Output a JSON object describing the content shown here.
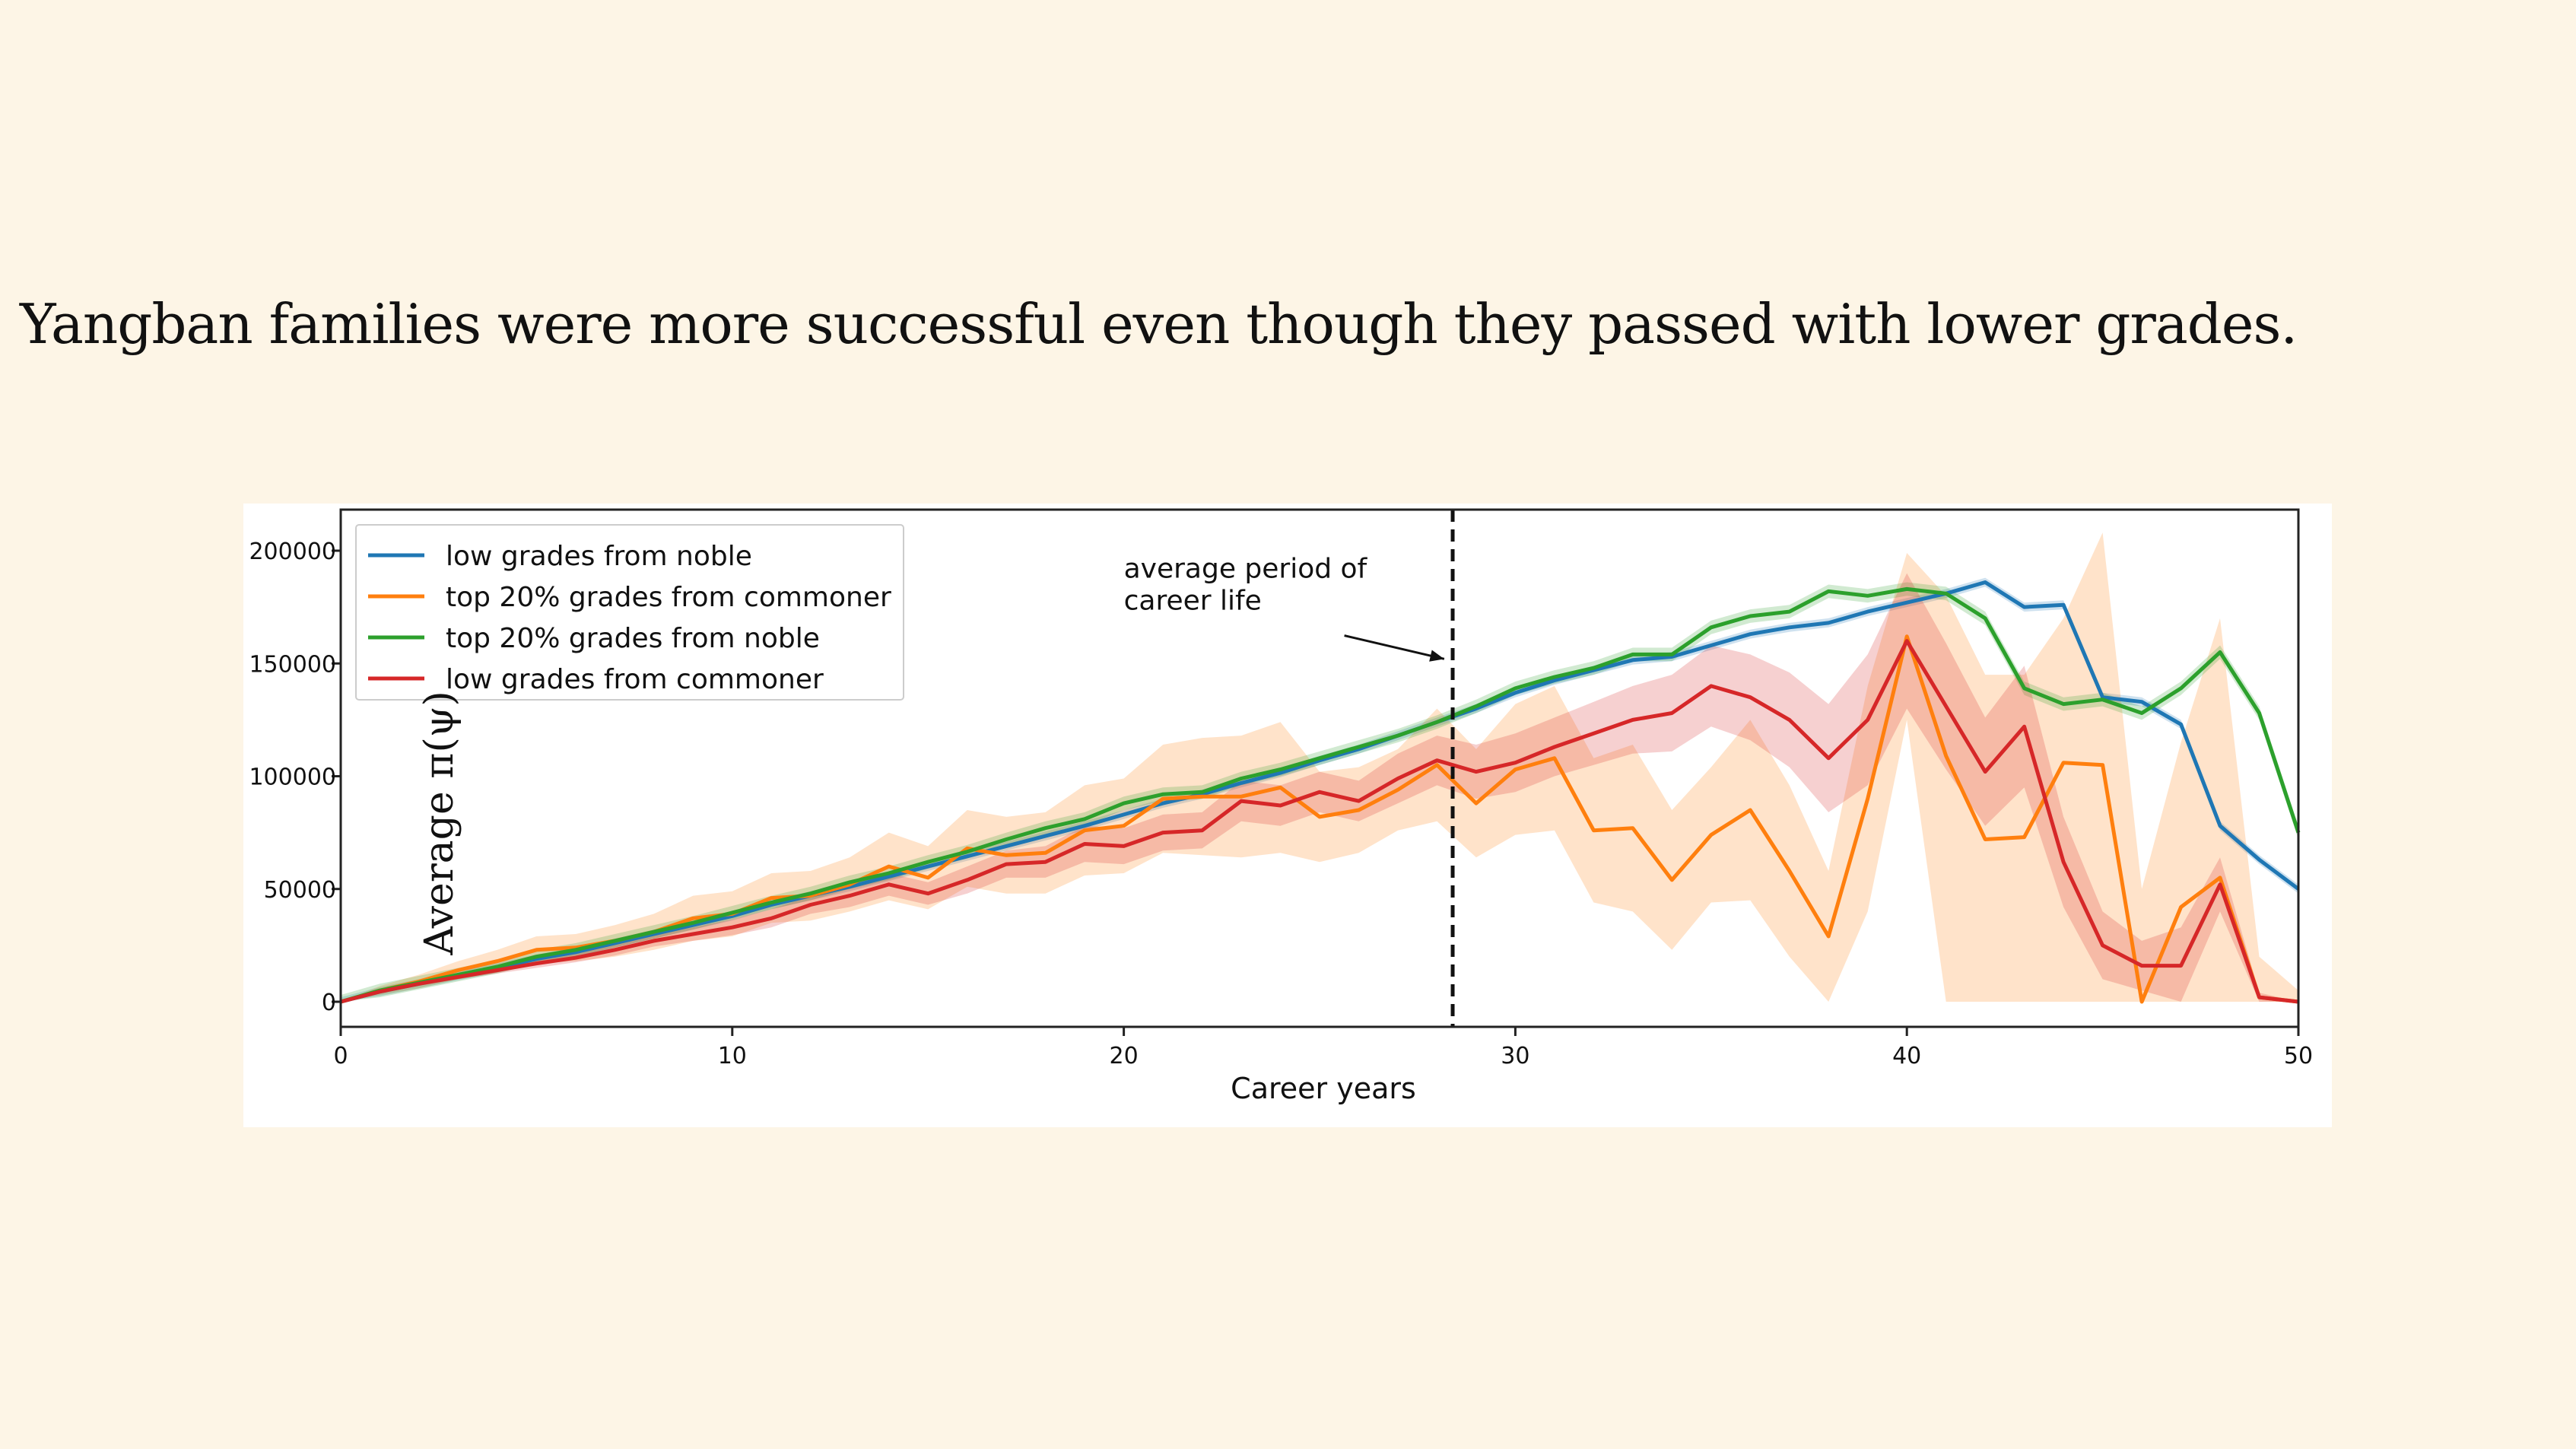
{
  "slide": {
    "title": "Yangban families were more successful even though they passed with lower grades."
  },
  "chart_data": {
    "type": "line",
    "xlabel": "Career years",
    "ylabel": "Average π(ψ)",
    "xlim": [
      0,
      50
    ],
    "ylim": [
      -10000,
      210000
    ],
    "x_ticks": [
      0,
      10,
      20,
      30,
      40,
      50
    ],
    "y_ticks": [
      0,
      50000,
      100000,
      150000,
      200000
    ],
    "y_tick_labels": [
      "0",
      "50000",
      "100000",
      "150000",
      "200000"
    ],
    "grid": false,
    "legend_position": "top-left",
    "annotation": {
      "text_lines": [
        "average period of",
        "career life"
      ],
      "vline_x": 28.4,
      "text_x": 20,
      "text_y": 188000,
      "arrow_to": [
        28.3,
        152000
      ]
    },
    "series": [
      {
        "name": "low grades from noble",
        "color": "#1f77b4",
        "x": [
          0,
          1,
          2,
          3,
          4,
          5,
          6,
          7,
          8,
          9,
          10,
          11,
          12,
          13,
          14,
          15,
          16,
          17,
          18,
          19,
          20,
          21,
          22,
          23,
          24,
          25,
          26,
          27,
          28,
          29,
          30,
          31,
          32,
          33,
          34,
          35,
          36,
          37,
          38,
          39,
          40,
          41,
          42,
          43,
          44,
          45,
          46,
          47,
          48,
          49,
          50
        ],
        "y": [
          0,
          4500,
          8000,
          11500,
          15000,
          19000,
          22000,
          26000,
          30000,
          34000,
          38000,
          43000,
          47000,
          51000,
          55500,
          60000,
          64500,
          69000,
          73500,
          78000,
          83000,
          88000,
          92000,
          97000,
          101500,
          107000,
          112000,
          118000,
          124000,
          130000,
          137000,
          142500,
          147000,
          151500,
          153000,
          158000,
          163000,
          166000,
          168000,
          173000,
          177000,
          181000,
          186000,
          175000,
          176000,
          135000,
          133000,
          123000,
          78000,
          63000,
          50000
        ],
        "band": 2000
      },
      {
        "name": "top 20% grades from commoner",
        "color": "#ff7f0e",
        "x": [
          0,
          1,
          2,
          3,
          4,
          5,
          6,
          7,
          8,
          9,
          10,
          11,
          12,
          13,
          14,
          15,
          16,
          17,
          18,
          19,
          20,
          21,
          22,
          23,
          24,
          25,
          26,
          27,
          28,
          29,
          30,
          31,
          32,
          33,
          34,
          35,
          36,
          37,
          38,
          39,
          40,
          41,
          42,
          43,
          44,
          45,
          46,
          47,
          48,
          49,
          50
        ],
        "y": [
          0,
          5000,
          9000,
          14000,
          18000,
          23000,
          24000,
          27000,
          31000,
          37000,
          39000,
          46000,
          47000,
          52000,
          60000,
          55000,
          68000,
          65000,
          66000,
          76000,
          78000,
          90000,
          91000,
          91000,
          95000,
          82000,
          85000,
          94000,
          105000,
          88000,
          103000,
          108000,
          76000,
          77000,
          54000,
          74000,
          85000,
          58000,
          29000,
          90000,
          162000,
          109000,
          72000,
          73000,
          106000,
          105000,
          0,
          42000,
          55000,
          2000,
          0
        ],
        "band_low": [
          0,
          3000,
          6000,
          10000,
          13000,
          17000,
          18000,
          20000,
          23000,
          27000,
          29000,
          35000,
          36000,
          40000,
          45000,
          41000,
          51000,
          48000,
          48000,
          56000,
          57000,
          66000,
          65000,
          64000,
          66000,
          62000,
          66000,
          76000,
          80000,
          64000,
          74000,
          76000,
          44000,
          40000,
          23000,
          44000,
          45000,
          20000,
          0,
          40000,
          125000,
          0,
          0,
          0,
          0,
          0,
          0,
          0,
          0,
          0,
          0
        ],
        "band_high": [
          0,
          7000,
          12000,
          18000,
          23000,
          29000,
          30000,
          34000,
          39000,
          47000,
          49000,
          57000,
          58000,
          64000,
          75000,
          69000,
          85000,
          82000,
          84000,
          96000,
          99000,
          114000,
          117000,
          118000,
          124000,
          102000,
          104000,
          112000,
          130000,
          112000,
          132000,
          140000,
          108000,
          114000,
          85000,
          104000,
          125000,
          96000,
          58000,
          140000,
          199000,
          180000,
          145000,
          145000,
          170000,
          208000,
          50000,
          115000,
          170000,
          20000,
          5000
        ]
      },
      {
        "name": "top 20% grades from noble",
        "color": "#2ca02c",
        "x": [
          0,
          1,
          2,
          3,
          4,
          5,
          6,
          7,
          8,
          9,
          10,
          11,
          12,
          13,
          14,
          15,
          16,
          17,
          18,
          19,
          20,
          21,
          22,
          23,
          24,
          25,
          26,
          27,
          28,
          29,
          30,
          31,
          32,
          33,
          34,
          35,
          36,
          37,
          38,
          39,
          40,
          41,
          42,
          43,
          44,
          45,
          46,
          47,
          48,
          49,
          50
        ],
        "y": [
          0,
          5000,
          8500,
          12000,
          15500,
          20000,
          23000,
          27000,
          31000,
          35000,
          39500,
          44000,
          48000,
          53000,
          57000,
          62000,
          66500,
          72000,
          77000,
          81000,
          88000,
          92000,
          93000,
          99000,
          103000,
          108000,
          113000,
          118000,
          124000,
          131000,
          139000,
          144000,
          148000,
          154000,
          154000,
          166000,
          171000,
          173000,
          182000,
          180000,
          183000,
          181000,
          170000,
          139000,
          132000,
          134000,
          128000,
          139000,
          155000,
          128000,
          75000
        ],
        "band": 3000
      },
      {
        "name": "low grades from commoner",
        "color": "#d62728",
        "x": [
          0,
          1,
          2,
          3,
          4,
          5,
          6,
          7,
          8,
          9,
          10,
          11,
          12,
          13,
          14,
          15,
          16,
          17,
          18,
          19,
          20,
          21,
          22,
          23,
          24,
          25,
          26,
          27,
          28,
          29,
          30,
          31,
          32,
          33,
          34,
          35,
          36,
          37,
          38,
          39,
          40,
          41,
          42,
          43,
          44,
          45,
          46,
          47,
          48,
          49,
          50
        ],
        "y": [
          0,
          4500,
          8000,
          11000,
          14000,
          17000,
          19500,
          23000,
          27000,
          30000,
          33000,
          37000,
          43000,
          47000,
          52000,
          48000,
          54000,
          61000,
          62000,
          70000,
          69000,
          75000,
          76000,
          89000,
          87000,
          93000,
          89000,
          99000,
          107000,
          102000,
          106000,
          113000,
          119000,
          125000,
          128000,
          140000,
          135000,
          125000,
          108000,
          125000,
          160000,
          131000,
          102000,
          122000,
          62000,
          25000,
          16000,
          16000,
          52000,
          2000,
          0
        ],
        "band_low": [
          0,
          4000,
          7000,
          10000,
          12500,
          15000,
          17500,
          20500,
          24500,
          27000,
          29500,
          33000,
          39000,
          42000,
          47000,
          43000,
          48000,
          55000,
          55000,
          62000,
          61000,
          67000,
          68000,
          80000,
          78000,
          84000,
          80000,
          88000,
          96000,
          90000,
          93000,
          100000,
          105000,
          110000,
          111000,
          122000,
          116000,
          104000,
          84000,
          96000,
          130000,
          103000,
          78000,
          95000,
          42000,
          10000,
          5000,
          0,
          40000,
          0,
          0
        ],
        "band_high": [
          0,
          5000,
          9000,
          12000,
          15500,
          19000,
          21500,
          25500,
          29500,
          33000,
          36500,
          41000,
          47000,
          52000,
          57000,
          53000,
          60000,
          67000,
          69000,
          78000,
          77000,
          83000,
          84000,
          98000,
          96000,
          102000,
          98000,
          110000,
          118000,
          114000,
          119000,
          126000,
          133000,
          140000,
          145000,
          158000,
          154000,
          146000,
          132000,
          154000,
          190000,
          159000,
          126000,
          149000,
          82000,
          40000,
          27000,
          33000,
          64000,
          4000,
          0
        ]
      }
    ]
  }
}
